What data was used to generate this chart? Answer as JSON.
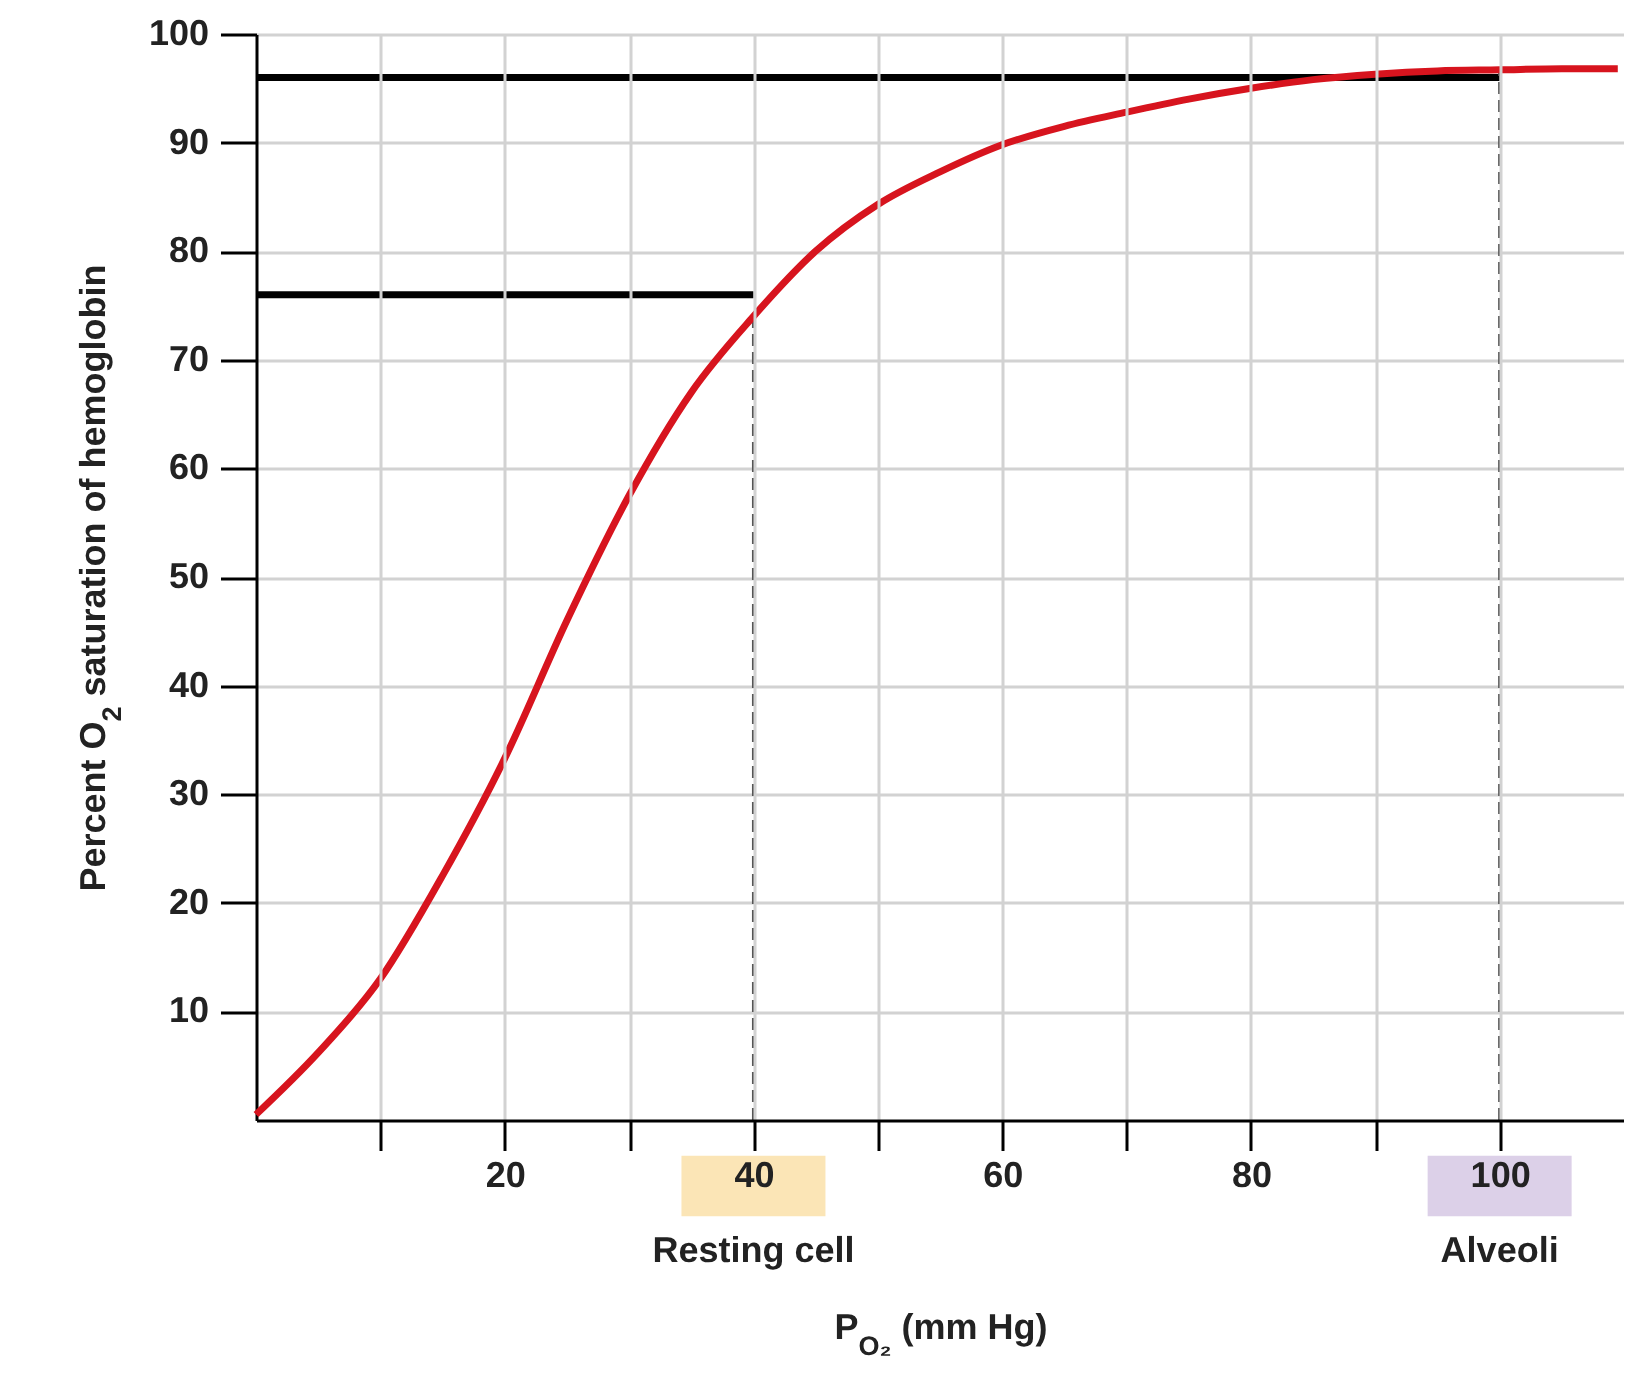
{
  "chart_data": {
    "type": "line",
    "xlabel": "P$_{O₂}$ (mm Hg)",
    "ylabel": "Percent O$_{2}$ saturation of hemoglobin",
    "xlim": [
      0,
      110
    ],
    "xticks": [
      {
        "value": 10,
        "label": null
      },
      20,
      {
        "value": 30,
        "label": null
      },
      40,
      {
        "value": 50,
        "label": null
      },
      60,
      {
        "value": 70,
        "label": null
      },
      80,
      {
        "value": 90,
        "label": null
      },
      100
    ],
    "ylim": [
      0,
      100
    ],
    "yticks": [
      10,
      20,
      30,
      40,
      50,
      60,
      70,
      80,
      90,
      100
    ],
    "grid": true,
    "annotations": [
      "Resting cell",
      "Alveoli"
    ],
    "series": [
      {
        "color": "#d7141e",
        "x": [
          0,
          5,
          10,
          15,
          20,
          25,
          30,
          35,
          40,
          45,
          50,
          55,
          60,
          65,
          70,
          75,
          80,
          85,
          90,
          95,
          100,
          105,
          109.5
        ],
        "values": [
          0.5,
          6.2,
          13,
          22.5,
          33.3,
          46,
          57.5,
          67,
          74,
          80,
          84.3,
          87.3,
          89.8,
          91.5,
          92.8,
          94,
          95,
          95.8,
          96.3,
          96.6,
          96.7,
          96.8,
          96.8
        ]
      },
      {
        "type": "line",
        "color": "#000000",
        "x": [
          0,
          100
        ],
        "values": [
          96,
          96
        ]
      },
      {
        "type": "line",
        "color": "#000000",
        "x": [
          0,
          40
        ],
        "values": [
          76,
          76
        ]
      },
      {
        "type": "line",
        "color": "#555555",
        "line_style": "dashed",
        "x": [
          40,
          40
        ],
        "values": [
          0,
          74
        ]
      },
      {
        "type": "line",
        "color": "#555555",
        "line_style": "dashed",
        "x": [
          100,
          100
        ],
        "values": [
          0,
          96.7
        ]
      }
    ]
  }
}
